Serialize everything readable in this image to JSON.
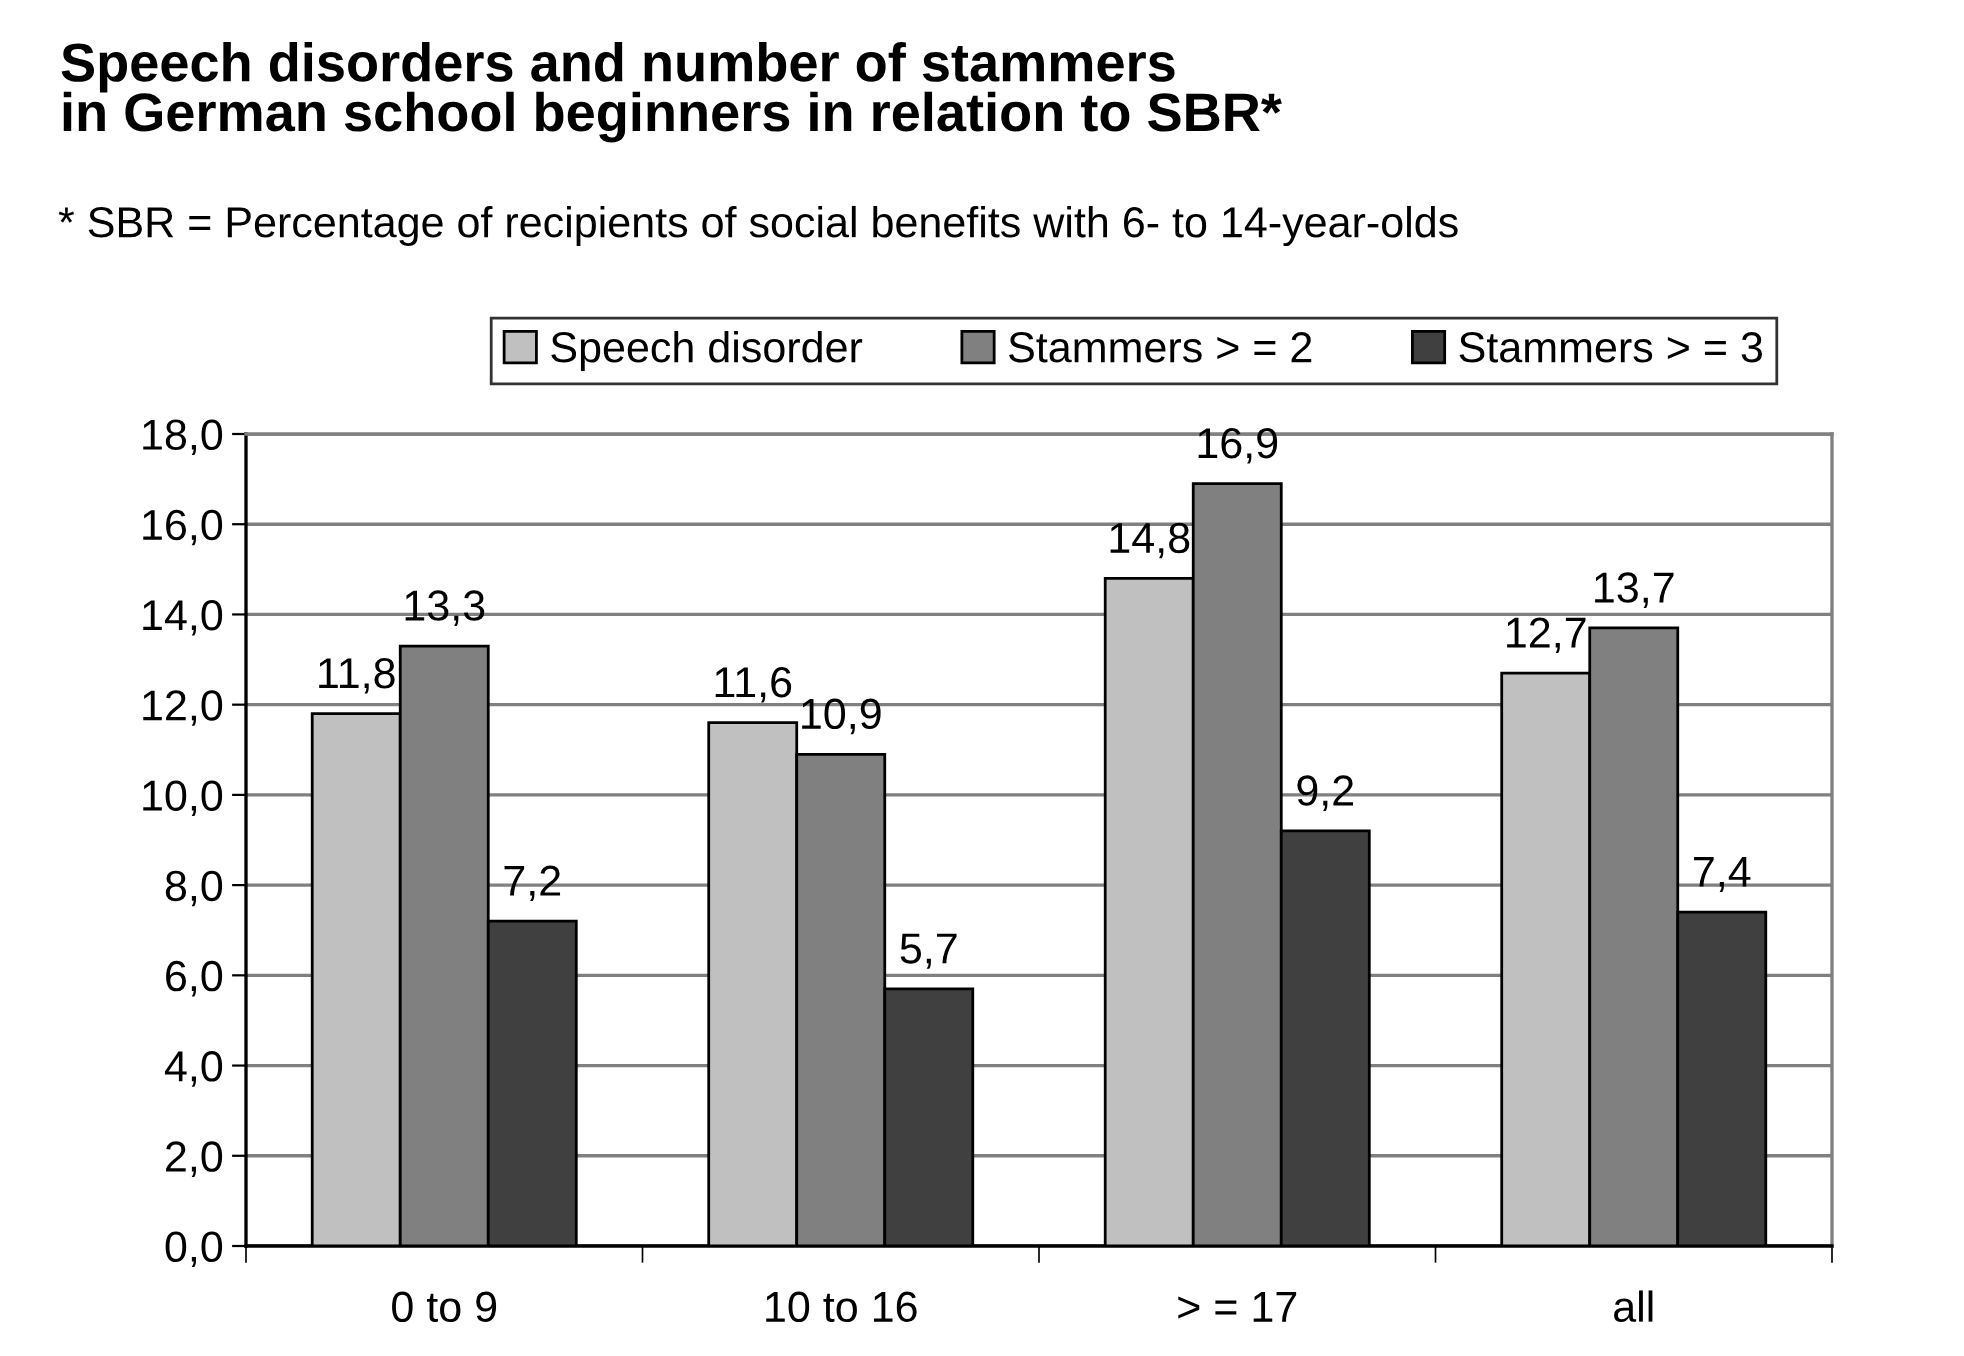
{
  "chart_data": {
    "type": "bar",
    "title": "Speech disorders and number of stammers\nin German school beginners in relation to SBR*",
    "subtitle": "* SBR = Percentage of recipients of social benefits with 6- to 14-year-olds",
    "categories": [
      "0 to 9",
      "10 to 16",
      "> = 17",
      "all"
    ],
    "series": [
      {
        "name": "Speech disorder",
        "color": "#c0c0c0",
        "values": [
          11.8,
          11.6,
          14.8,
          12.7
        ],
        "value_labels": [
          "11,8",
          "11,6",
          "14,8",
          "12,7"
        ]
      },
      {
        "name": "Stammers > = 2",
        "color": "#808080",
        "values": [
          13.3,
          10.9,
          16.9,
          13.7
        ],
        "value_labels": [
          "13,3",
          "10,9",
          "16,9",
          "13,7"
        ]
      },
      {
        "name": "Stammers > = 3",
        "color": "#404040",
        "values": [
          7.2,
          5.7,
          9.2,
          7.4
        ],
        "value_labels": [
          "7,2",
          "5,7",
          "9,2",
          "7,4"
        ]
      }
    ],
    "ylim": [
      0,
      18
    ],
    "yticks": [
      {
        "value": 0,
        "label": "0,0"
      },
      {
        "value": 2,
        "label": "2,0"
      },
      {
        "value": 4,
        "label": "4,0"
      },
      {
        "value": 6,
        "label": "6,0"
      },
      {
        "value": 8,
        "label": "8,0"
      },
      {
        "value": 10,
        "label": "10,0"
      },
      {
        "value": 12,
        "label": "12,0"
      },
      {
        "value": 14,
        "label": "14,0"
      },
      {
        "value": 16,
        "label": "16,0"
      },
      {
        "value": 18,
        "label": "18,0"
      }
    ],
    "grid": "y",
    "legend": "top"
  }
}
